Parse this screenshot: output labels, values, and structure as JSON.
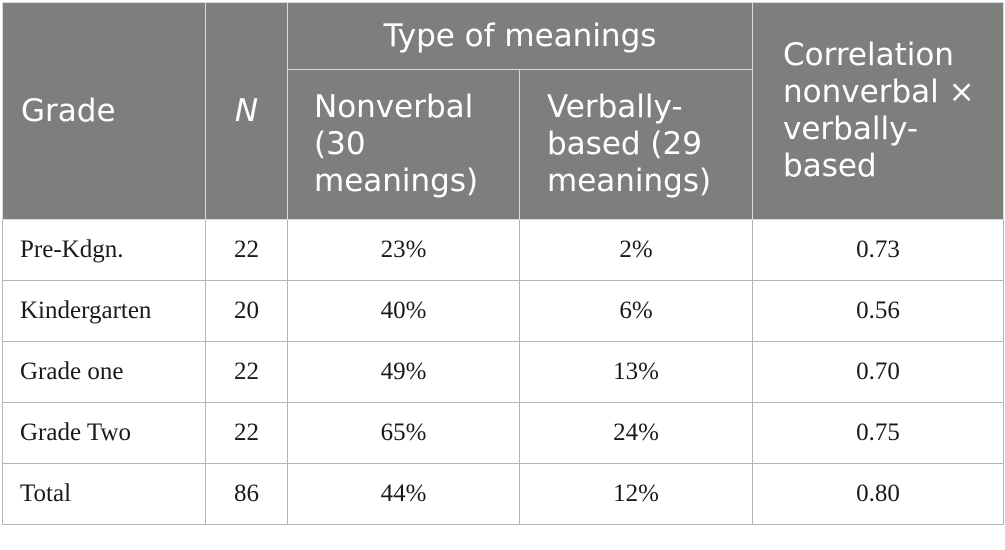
{
  "table": {
    "headers": {
      "grade": "Grade",
      "n": "N",
      "type_group": "Type of meanings",
      "nonverbal": [
        "Nonverbal",
        "(30",
        "meanings)"
      ],
      "verbally_based": [
        "Verbally-",
        "based (29",
        "meanings)"
      ],
      "correlation": [
        "Correlation",
        "nonverbal ×",
        "verbally-",
        "based"
      ]
    },
    "rows": [
      {
        "grade": "Pre-Kdgn.",
        "n": "22",
        "nonverbal": "23%",
        "verbally_based": "2%",
        "correlation": "0.73"
      },
      {
        "grade": "Kindergarten",
        "n": "20",
        "nonverbal": "40%",
        "verbally_based": "6%",
        "correlation": "0.56"
      },
      {
        "grade": "Grade one",
        "n": "22",
        "nonverbal": "49%",
        "verbally_based": "13%",
        "correlation": "0.70"
      },
      {
        "grade": "Grade Two",
        "n": "22",
        "nonverbal": "65%",
        "verbally_based": "24%",
        "correlation": "0.75"
      },
      {
        "grade": "Total",
        "n": "86",
        "nonverbal": "44%",
        "verbally_based": "12%",
        "correlation": "0.80"
      }
    ]
  },
  "colors": {
    "header_background": "#7d7f7c",
    "header_text": "#ffffff",
    "body_text": "#1a1a1a",
    "grid_line": "#b5b5b5"
  }
}
